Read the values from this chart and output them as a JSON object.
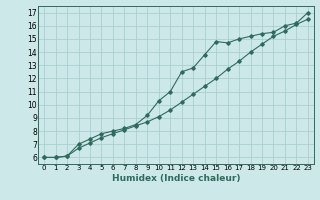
{
  "xlabel": "Humidex (Indice chaleur)",
  "ylabel": "",
  "background_color": "#cde8e8",
  "line_color": "#2e6b5e",
  "grid_color": "#aacfcf",
  "xmin": -0.5,
  "xmax": 23.5,
  "ymin": 5.5,
  "ymax": 17.5,
  "yticks": [
    6,
    7,
    8,
    9,
    10,
    11,
    12,
    13,
    14,
    15,
    16,
    17
  ],
  "xticks": [
    0,
    1,
    2,
    3,
    4,
    5,
    6,
    7,
    8,
    9,
    10,
    11,
    12,
    13,
    14,
    15,
    16,
    17,
    18,
    19,
    20,
    21,
    22,
    23
  ],
  "line1_x": [
    0,
    1,
    2,
    3,
    4,
    5,
    6,
    7,
    8,
    9,
    10,
    11,
    12,
    13,
    14,
    15,
    16,
    17,
    18,
    19,
    20,
    21,
    22,
    23
  ],
  "line1_y": [
    6.0,
    6.0,
    6.1,
    7.0,
    7.4,
    7.8,
    8.0,
    8.2,
    8.5,
    9.2,
    10.3,
    11.0,
    12.5,
    12.8,
    13.8,
    14.8,
    14.7,
    15.0,
    15.2,
    15.4,
    15.5,
    16.0,
    16.2,
    17.0
  ],
  "line2_x": [
    0,
    1,
    2,
    3,
    4,
    5,
    6,
    7,
    8,
    9,
    10,
    11,
    12,
    13,
    14,
    15,
    16,
    17,
    18,
    19,
    20,
    21,
    22,
    23
  ],
  "line2_y": [
    6.0,
    6.0,
    6.1,
    6.7,
    7.1,
    7.5,
    7.8,
    8.1,
    8.4,
    8.7,
    9.1,
    9.6,
    10.2,
    10.8,
    11.4,
    12.0,
    12.7,
    13.3,
    14.0,
    14.6,
    15.2,
    15.6,
    16.1,
    16.5
  ],
  "xlabel_fontsize": 6.5,
  "tick_fontsize_x": 5.0,
  "tick_fontsize_y": 5.5
}
